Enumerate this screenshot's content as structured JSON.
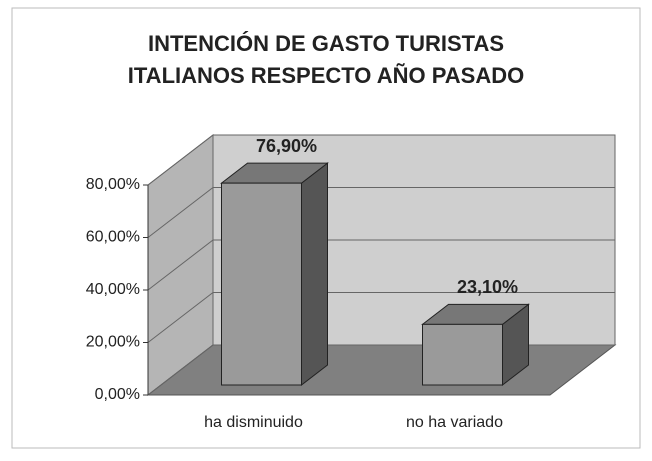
{
  "chart_data": {
    "type": "bar3d",
    "title": "INTENCIÓN DE GASTO TURISTAS ITALIANOS RESPECTO AÑO PASADO",
    "categories": [
      "ha disminuido",
      "no ha variado"
    ],
    "values": [
      76.9,
      23.1
    ],
    "value_labels": [
      "76,90%",
      "23,10%"
    ],
    "color": "#9a9a9a",
    "ylim": [
      0,
      80
    ],
    "yticks": [
      {
        "value": 0,
        "label": "0,00%"
      },
      {
        "value": 20,
        "label": "20,00%"
      },
      {
        "value": 40,
        "label": "40,00%"
      },
      {
        "value": 60,
        "label": "60,00%"
      },
      {
        "value": 80,
        "label": "80,00%"
      }
    ],
    "grid": true
  }
}
